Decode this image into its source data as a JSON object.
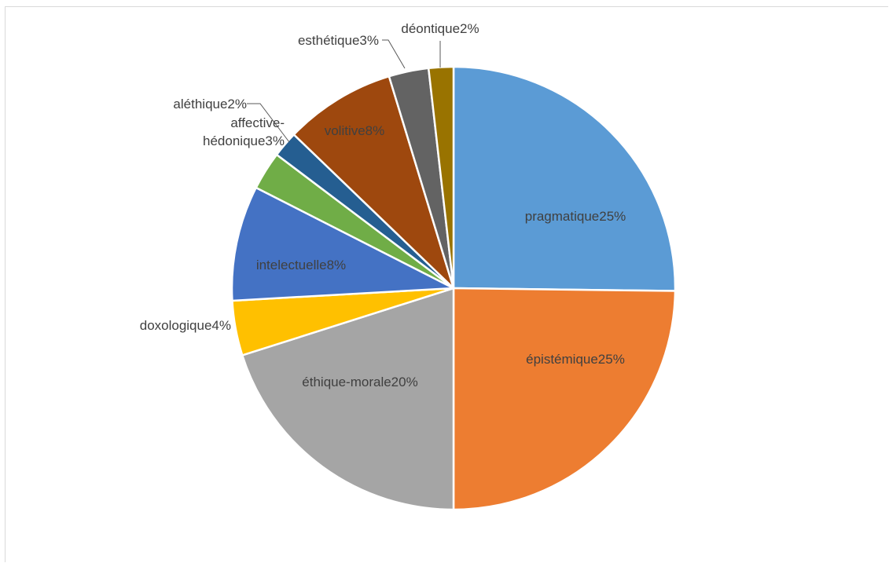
{
  "chart_data": {
    "type": "pie",
    "title": "",
    "legend": "none",
    "colors": {
      "pragmatique": "#5b9bd5",
      "epistemique": "#ed7d31",
      "ethique_morale": "#a5a5a5",
      "doxologique": "#ffc000",
      "intelectuelle": "#4472c4",
      "affective_hedonique": "#70ad47",
      "alethique": "#255e91",
      "volitive": "#9e480e",
      "esthetique": "#636363",
      "deontique": "#997300"
    },
    "slices": [
      {
        "key": "pragmatique",
        "category": "pragmatique",
        "value": 25.2,
        "pct_label": "25%",
        "label_lines": [
          "pragmatique25%"
        ]
      },
      {
        "key": "epistemique",
        "category": "épistémique",
        "value": 24.8,
        "pct_label": "25%",
        "label_lines": [
          "épistémique25%"
        ]
      },
      {
        "key": "ethique_morale",
        "category": "éthique-morale",
        "value": 20.1,
        "pct_label": "20%",
        "label_lines": [
          "éthique-morale20%"
        ]
      },
      {
        "key": "doxologique",
        "category": "doxologique",
        "value": 4.0,
        "pct_label": "4%",
        "label_lines": [
          "doxologique4%"
        ]
      },
      {
        "key": "intelectuelle",
        "category": "intelectuelle",
        "value": 8.4,
        "pct_label": "8%",
        "label_lines": [
          "intelectuelle8%"
        ]
      },
      {
        "key": "affective_hedonique",
        "category": "affective-hédonique",
        "value": 2.8,
        "pct_label": "3%",
        "label_lines": [
          "affective-",
          "hédonique3%"
        ]
      },
      {
        "key": "alethique",
        "category": "aléthique",
        "value": 1.9,
        "pct_label": "2%",
        "label_lines": [
          "aléthique2%"
        ]
      },
      {
        "key": "volitive",
        "category": "volitive",
        "value": 8.1,
        "pct_label": "8%",
        "label_lines": [
          "volitive8%"
        ]
      },
      {
        "key": "esthetique",
        "category": "esthétique",
        "value": 2.9,
        "pct_label": "3%",
        "label_lines": [
          "esthétique3%"
        ]
      },
      {
        "key": "deontique",
        "category": "déontique",
        "value": 1.8,
        "pct_label": "2%",
        "label_lines": [
          "déontique2%"
        ]
      }
    ]
  }
}
